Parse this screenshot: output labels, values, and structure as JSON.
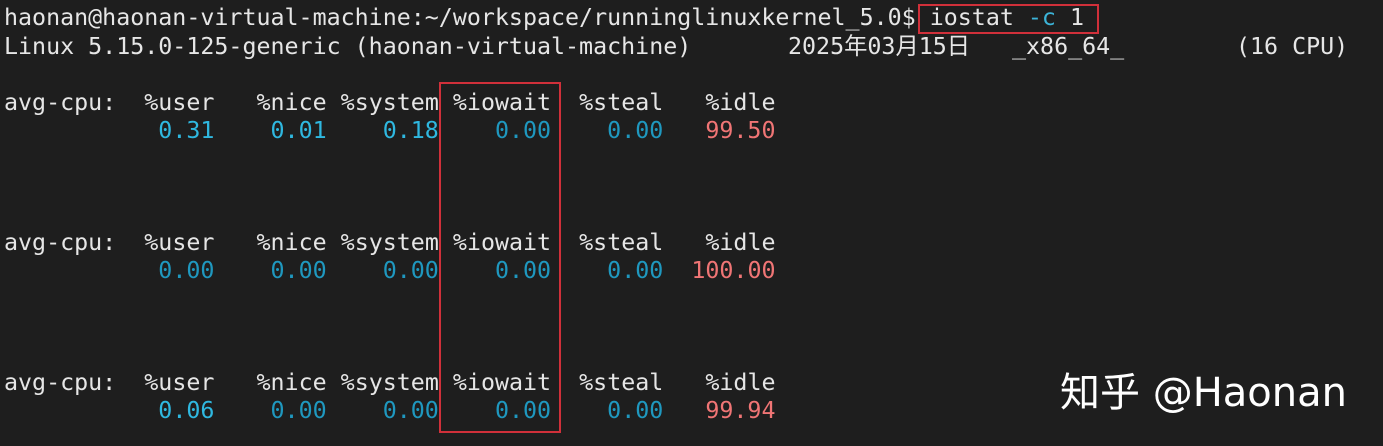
{
  "terminal": {
    "prompt": "haonan@haonan-virtual-machine:~/workspace/runninglinuxkernel_5.0$ ",
    "command": {
      "name": "iostat",
      "option": "-c",
      "arg": "1"
    },
    "sysinfo": "Linux 5.15.0-125-generic (haonan-virtual-machine) \t2025年03月15日 \t_x86_64_\t(16 CPU)",
    "sysinfo_parts": {
      "kernel": "Linux 5.15.0-125-generic (haonan-virtual-machine)",
      "date": "2025年03月15日",
      "arch": "_x86_64_",
      "cpus": "(16 CPU)"
    },
    "header": {
      "label": "avg-cpu:",
      "cols": [
        "%user",
        "%nice",
        "%system",
        "%iowait",
        "%steal",
        "%idle"
      ]
    },
    "samples": [
      {
        "user": "0.31",
        "nice": "0.01",
        "system": "0.18",
        "iowait": "0.00",
        "steal": "0.00",
        "idle": "99.50"
      },
      {
        "user": "0.00",
        "nice": "0.00",
        "system": "0.00",
        "iowait": "0.00",
        "steal": "0.00",
        "idle": "100.00"
      },
      {
        "user": "0.06",
        "nice": "0.00",
        "system": "0.00",
        "iowait": "0.00",
        "steal": "0.00",
        "idle": "99.94"
      }
    ]
  },
  "watermark": "知乎 @Haonan",
  "colors": {
    "background": "#1e1e1e",
    "value_cyan": "#2fb8e0",
    "idle_red": "#f07575",
    "highlight_box": "#d0303a"
  }
}
